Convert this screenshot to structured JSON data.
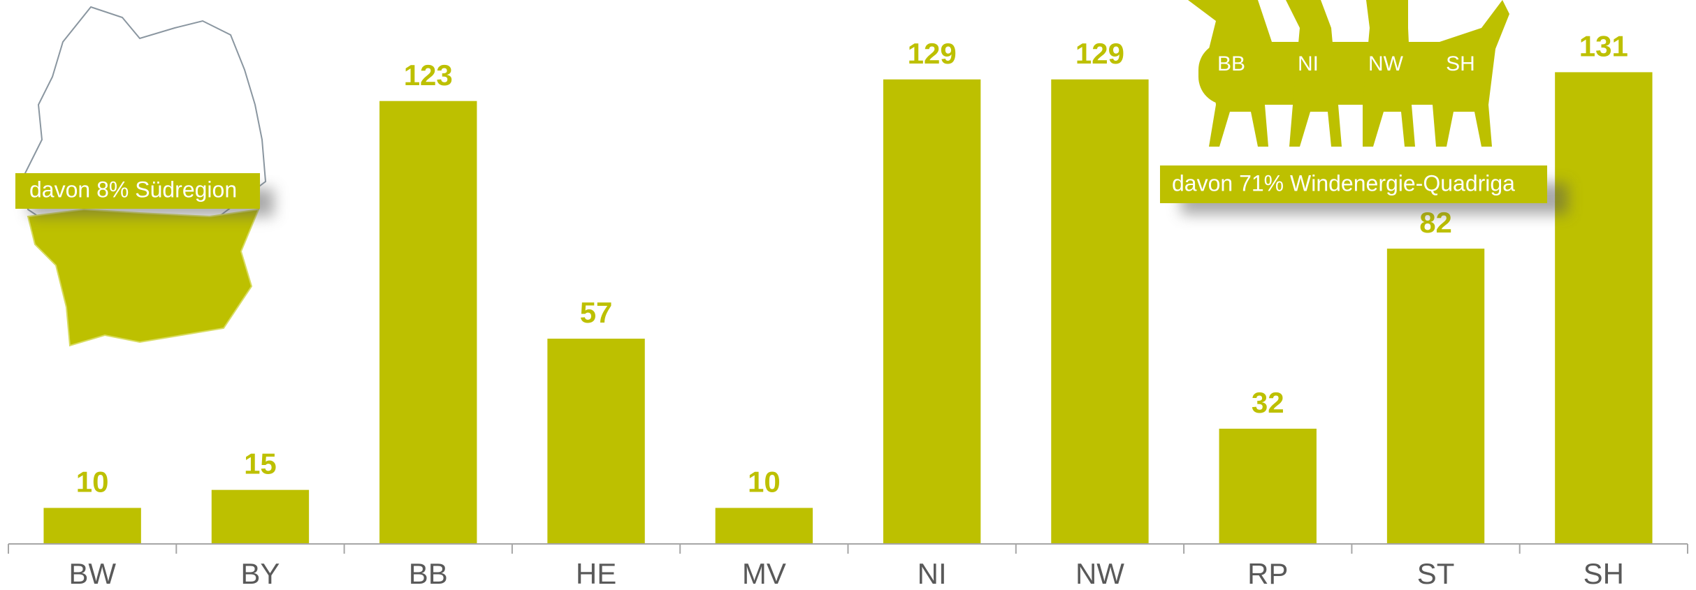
{
  "chart_data": {
    "type": "bar",
    "categories": [
      "BW",
      "BY",
      "BB",
      "HE",
      "MV",
      "NI",
      "NW",
      "RP",
      "ST",
      "SH"
    ],
    "values": [
      10,
      15,
      123,
      57,
      10,
      129,
      129,
      32,
      82,
      131
    ],
    "color": "#bdc000",
    "ylim": [
      0,
      140
    ],
    "annotations": [
      "davon 8% Südregion",
      "davon 71% Windenergie-Quadriga"
    ],
    "quadriga_labels": [
      "BB",
      "NI",
      "NW",
      "SH"
    ]
  }
}
